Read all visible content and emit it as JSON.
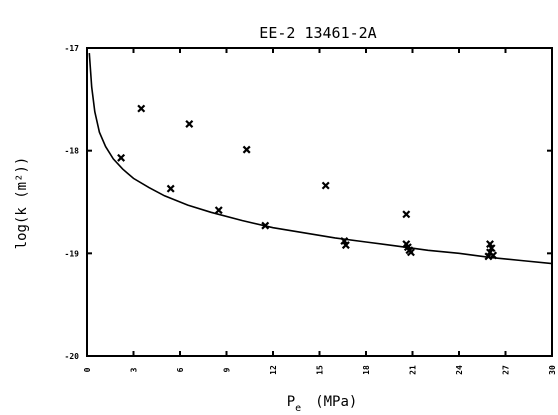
{
  "chart_data": {
    "type": "scatter",
    "title": "EE-2 13461-2A",
    "xlabel_main": "P",
    "xlabel_sub": "e",
    "xlabel_unit": "(MPa)",
    "ylabel": "log(k (m²))",
    "xlim": [
      0,
      30
    ],
    "ylim": [
      -20,
      -17
    ],
    "x_ticks": [
      0,
      3,
      6,
      9,
      12,
      15,
      18,
      21,
      24,
      27,
      30
    ],
    "y_ticks": [
      {
        "value": -17,
        "label": "-17"
      },
      {
        "value": -18,
        "label": "-18"
      },
      {
        "value": -19,
        "label": "-19"
      },
      {
        "value": -20,
        "label": "-20"
      }
    ],
    "grid": false,
    "series": [
      {
        "marker": "x",
        "x": [
          2.2,
          3.5,
          5.4,
          6.6,
          8.5,
          10.3,
          11.5,
          15.4,
          16.6,
          16.7,
          20.6,
          20.6,
          20.7,
          20.8,
          20.9,
          26.0,
          26.1,
          26.0,
          26.2,
          25.9
        ],
        "y": [
          -18.07,
          -17.59,
          -18.37,
          -17.74,
          -18.58,
          -17.99,
          -18.73,
          -18.34,
          -18.88,
          -18.92,
          -18.62,
          -18.91,
          -18.94,
          -18.97,
          -18.99,
          -18.91,
          -18.95,
          -18.99,
          -19.02,
          -19.03
        ]
      }
    ],
    "fit_curve": {
      "x": [
        0.15,
        0.3,
        0.5,
        0.8,
        1.2,
        1.7,
        2.3,
        3.0,
        4.0,
        5.0,
        6.5,
        8.0,
        10.0,
        12.0,
        14.0,
        16.0,
        18.0,
        20.0,
        22.0,
        24.0,
        26.0,
        28.0,
        30.0
      ],
      "y": [
        -17.05,
        -17.38,
        -17.62,
        -17.82,
        -17.96,
        -18.08,
        -18.18,
        -18.27,
        -18.36,
        -18.44,
        -18.53,
        -18.6,
        -18.68,
        -18.75,
        -18.8,
        -18.85,
        -18.89,
        -18.93,
        -18.97,
        -19.0,
        -19.04,
        -19.07,
        -19.1
      ]
    }
  }
}
